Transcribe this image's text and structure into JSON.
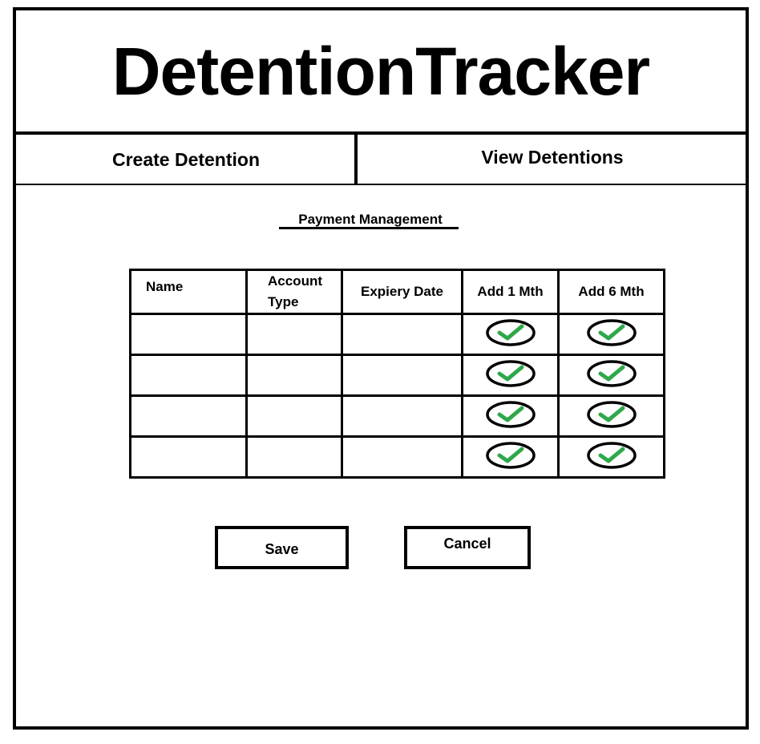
{
  "app": {
    "title": "DetentionTracker"
  },
  "nav": {
    "tabs": [
      {
        "label": "Create Detention"
      },
      {
        "label": "View Detentions"
      }
    ]
  },
  "section": {
    "title": "Payment Management"
  },
  "table": {
    "headers": {
      "name": "Name",
      "account_type": "Account Type",
      "expiry_date": "Expiery Date",
      "add_1": "Add 1 Mth",
      "add_6": "Add 6 Mth"
    },
    "rows": [
      {
        "name": "",
        "account_type": "",
        "expiry_date": "",
        "add_1_checked": true,
        "add_6_checked": true
      },
      {
        "name": "",
        "account_type": "",
        "expiry_date": "",
        "add_1_checked": true,
        "add_6_checked": true
      },
      {
        "name": "",
        "account_type": "",
        "expiry_date": "",
        "add_1_checked": true,
        "add_6_checked": true
      },
      {
        "name": "",
        "account_type": "",
        "expiry_date": "",
        "add_1_checked": true,
        "add_6_checked": true
      }
    ]
  },
  "actions": {
    "save_label": "Save",
    "cancel_label": "Cancel"
  },
  "colors": {
    "check_green": "#2ea84a",
    "border": "#000000"
  },
  "icons": {
    "check": "check-circle-icon"
  }
}
